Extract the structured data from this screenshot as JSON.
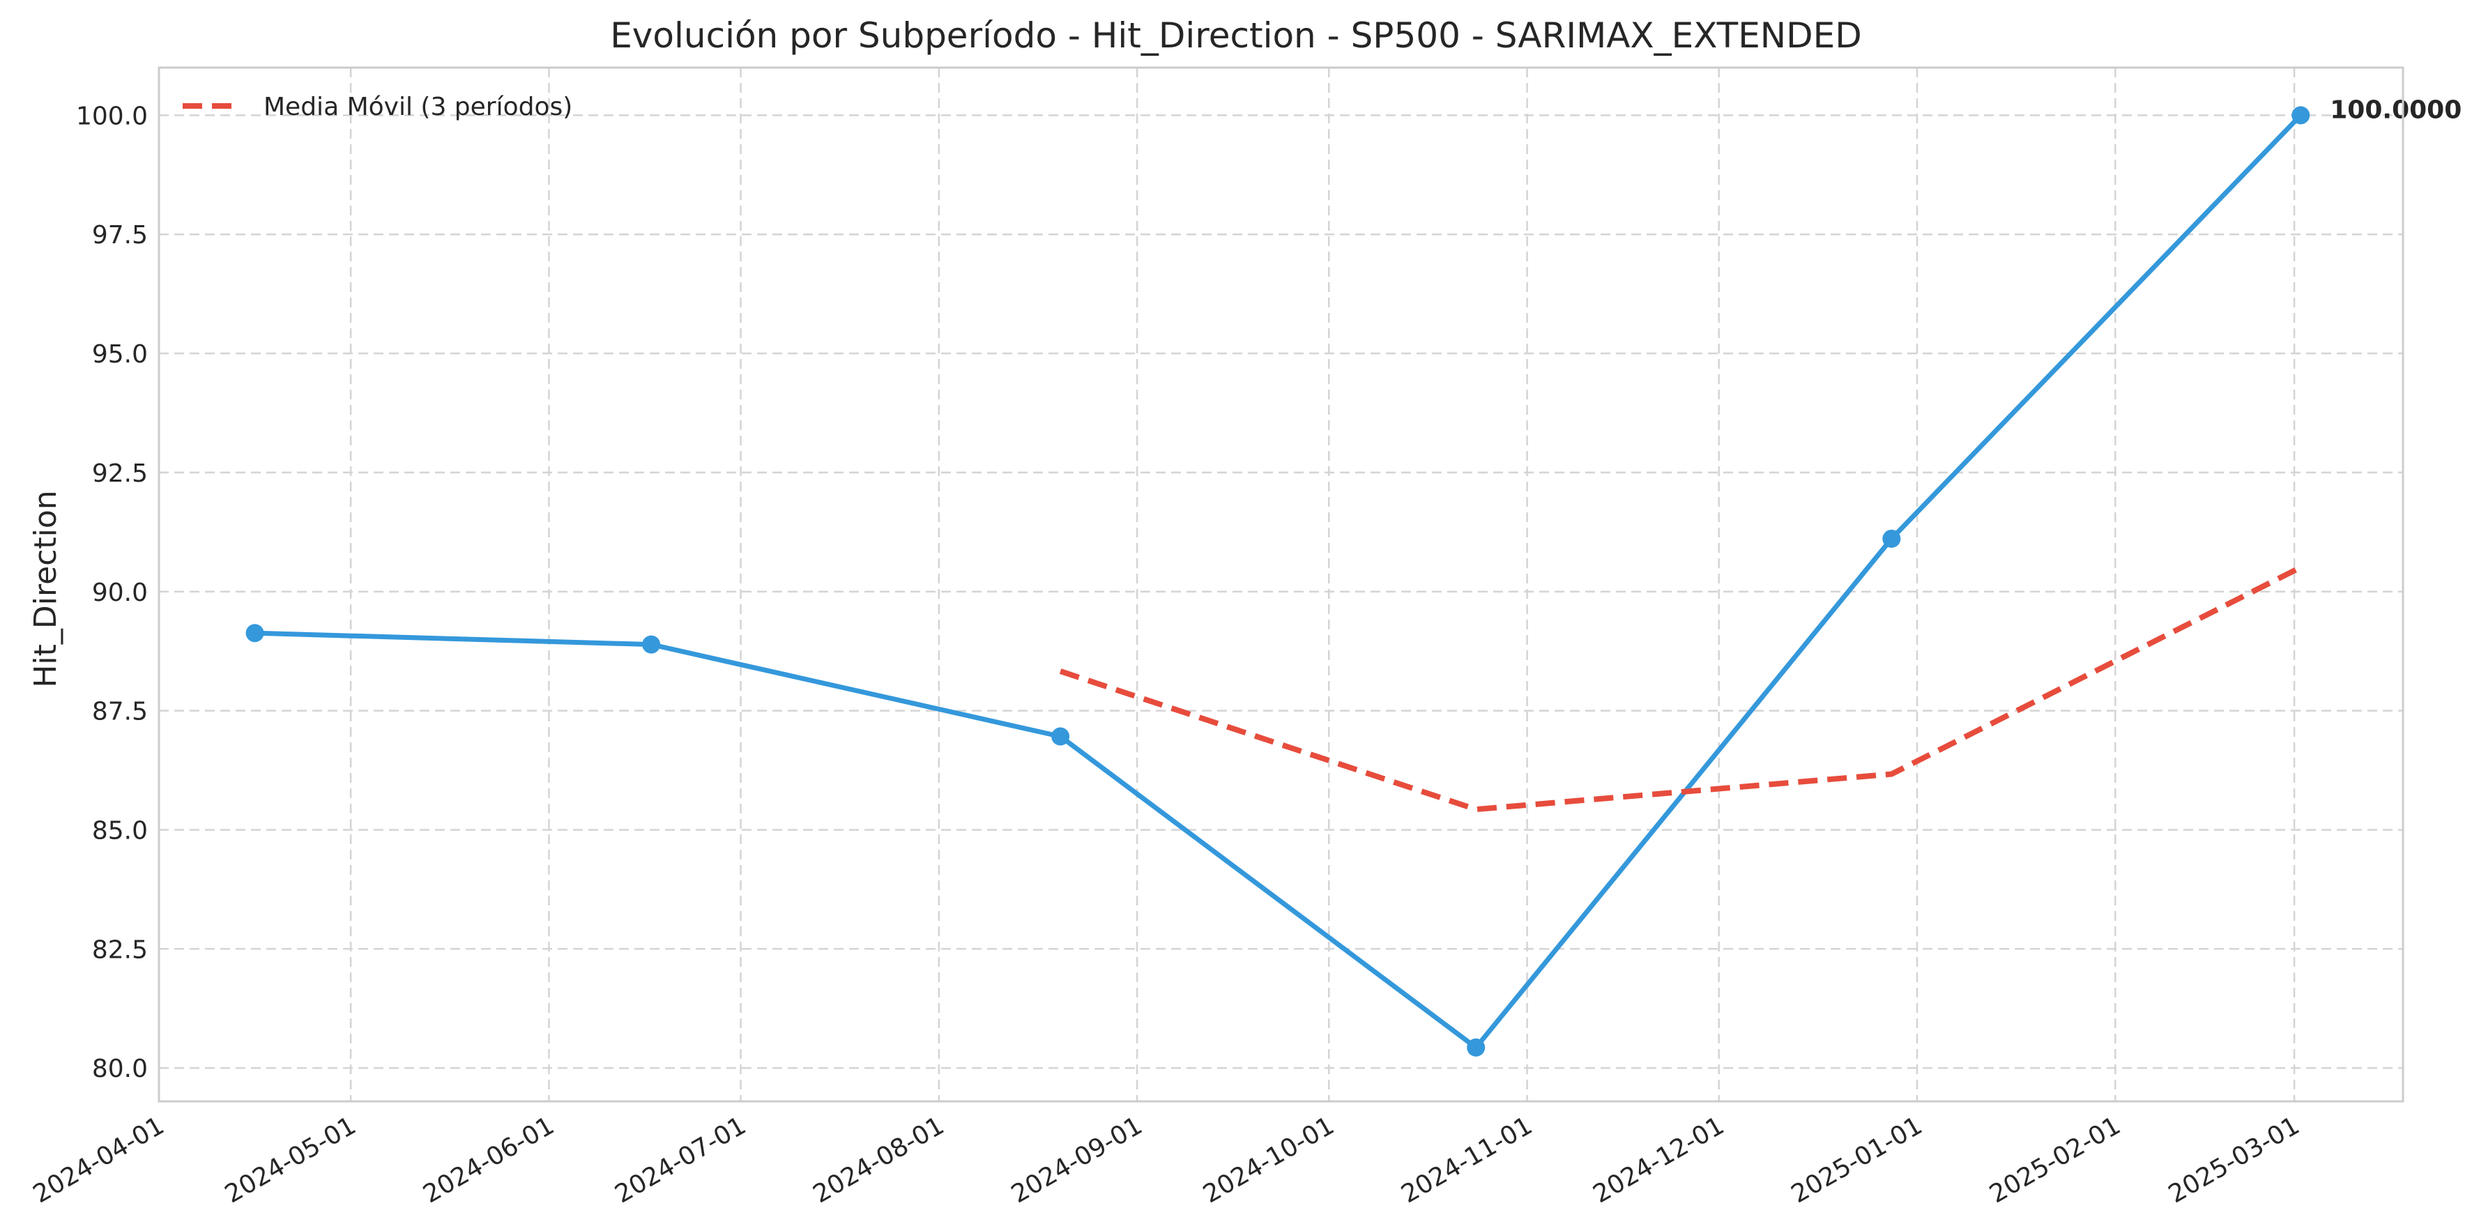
{
  "chart_data": {
    "type": "line",
    "title": "Evolución por Subperíodo - Hit_Direction - SP500 - SARIMAX_EXTENDED",
    "xlabel": "",
    "ylabel": "Hit_Direction",
    "x_axis_type": "date",
    "xlim": [
      "2024-04-01",
      "2025-03-18"
    ],
    "ylim": [
      79.3,
      101.0
    ],
    "x_ticks": [
      "2024-04-01",
      "2024-05-01",
      "2024-06-01",
      "2024-07-01",
      "2024-08-01",
      "2024-09-01",
      "2024-10-01",
      "2024-11-01",
      "2024-12-01",
      "2025-01-01",
      "2025-02-01",
      "2025-03-01"
    ],
    "y_ticks": [
      80.0,
      82.5,
      85.0,
      87.5,
      90.0,
      92.5,
      95.0,
      97.5,
      100.0
    ],
    "y_tick_labels": [
      "80.0",
      "82.5",
      "85.0",
      "87.5",
      "90.0",
      "92.5",
      "95.0",
      "97.5",
      "100.0"
    ],
    "grid": true,
    "legend_position": "top-left",
    "series": [
      {
        "color": "#3498db",
        "style": "solid",
        "markers": true,
        "x": [
          "2024-04-16",
          "2024-06-17",
          "2024-08-20",
          "2024-10-24",
          "2024-12-28",
          "2025-03-02"
        ],
        "y": [
          89.13,
          88.89,
          86.96,
          80.43,
          91.11,
          100.0
        ]
      },
      {
        "name": "Media Móvil (3 períodos)",
        "color": "#e74c3c",
        "style": "dashed",
        "markers": false,
        "x": [
          "2024-08-20",
          "2024-10-24",
          "2024-12-28",
          "2025-03-02"
        ],
        "y": [
          88.33,
          85.43,
          86.17,
          90.51
        ]
      }
    ],
    "annotations": [
      {
        "text": "100.0000",
        "x": "2025-03-02",
        "y": 100.0
      }
    ]
  }
}
